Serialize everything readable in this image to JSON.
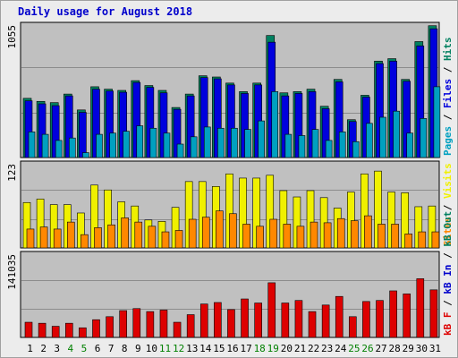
{
  "title": "Daily usage for August 2018",
  "chart_data": {
    "type": "bar",
    "title": "Daily usage for August 2018",
    "x": [
      "1",
      "2",
      "3",
      "4",
      "5",
      "6",
      "7",
      "8",
      "9",
      "10",
      "11",
      "12",
      "13",
      "14",
      "15",
      "16",
      "17",
      "18",
      "19",
      "20",
      "21",
      "22",
      "23",
      "24",
      "25",
      "26",
      "27",
      "28",
      "29",
      "30",
      "31"
    ],
    "weekend_days": [
      "4",
      "5",
      "11",
      "12",
      "18",
      "19",
      "25",
      "26"
    ],
    "colors": {
      "pages": "#00a0c0",
      "files": "#0000dd",
      "hits": "#008060",
      "visits": "#f0f000",
      "sites": "#ff8800",
      "kbytes": "#dd0000",
      "weekday_label": "#000000",
      "weekend_label": "#008000",
      "background": "#c0c0c0"
    },
    "panels": [
      {
        "name": "hits-files-pages",
        "ymax_label": "1055",
        "ymax": 1100,
        "legend": [
          "Pages",
          "Files",
          "Hits"
        ],
        "series": [
          {
            "name": "Hits",
            "values": [
              485,
              460,
              450,
              520,
              390,
              580,
              560,
              550,
              630,
              590,
              550,
              410,
              520,
              670,
              660,
              610,
              540,
              610,
              1000,
              530,
              540,
              560,
              420,
              640,
              310,
              510,
              790,
              810,
              640,
              950,
              1080
            ]
          },
          {
            "name": "Files",
            "values": [
              465,
              440,
              425,
              505,
              370,
              560,
              545,
              535,
              615,
              575,
              530,
              395,
              505,
              655,
              645,
              595,
              525,
              595,
              945,
              505,
              525,
              540,
              400,
              620,
              295,
              495,
              770,
              790,
              625,
              915,
              1055
            ]
          },
          {
            "name": "Pages",
            "values": [
              210,
              190,
              140,
              160,
              40,
              190,
              200,
              215,
              260,
              240,
              200,
              110,
              170,
              250,
              240,
              240,
              230,
              300,
              540,
              190,
              180,
              230,
              140,
              210,
              130,
              280,
              330,
              380,
              200,
              320,
              580
            ]
          }
        ]
      },
      {
        "name": "visits-sites",
        "ymax_label": "123",
        "ymax": 123,
        "legend": [
          "Sites",
          "Visits"
        ],
        "series": [
          {
            "name": "Visits",
            "values": [
              65,
              70,
              62,
              62,
              50,
              90,
              83,
              66,
              60,
              40,
              38,
              58,
              95,
              95,
              88,
              106,
              100,
              100,
              104,
              82,
              73,
              82,
              72,
              57,
              80,
              106,
              110,
              80,
              79,
              59,
              60
            ]
          },
          {
            "name": "Sites",
            "values": [
              27,
              30,
              27,
              37,
              19,
              29,
              33,
              43,
              37,
              31,
              23,
              25,
              41,
              44,
              53,
              49,
              34,
              31,
              41,
              34,
              31,
              37,
              36,
              42,
              39,
              46,
              34,
              34,
              20,
              23,
              23
            ]
          }
        ]
      },
      {
        "name": "kbytes",
        "ymax_label": "141035",
        "ymax": 168000,
        "legend": [
          "kB F",
          "kB In",
          "kB Out"
        ],
        "series": [
          {
            "name": "kB F",
            "values": [
              30000,
              28000,
              22000,
              28000,
              19000,
              35000,
              41000,
              53000,
              57000,
              51000,
              54000,
              30000,
              45000,
              66000,
              69000,
              55000,
              76000,
              68000,
              108000,
              68000,
              73000,
              51000,
              64000,
              81000,
              41000,
              71000,
              73000,
              92000,
              86000,
              116000,
              94000
            ]
          }
        ]
      }
    ]
  }
}
